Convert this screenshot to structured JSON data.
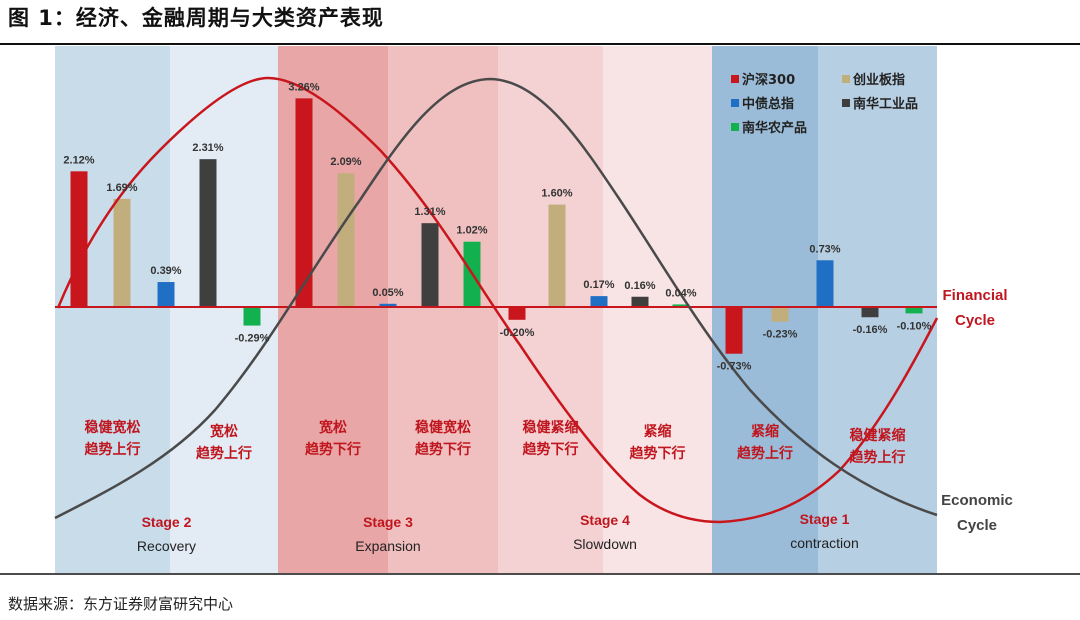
{
  "title": "图 1：经济、金融周期与大类资产表现",
  "source": "数据来源：东方证券财富研究中心",
  "colors": {
    "沪深300": "#c9161d",
    "创业板指": "#c2ae7c",
    "中债总指": "#1f6fc4",
    "南华工业品": "#3f3f3f",
    "南华农产品": "#12b04e",
    "financial_curve": "#c9161d",
    "economic_curve": "#4a4a4a"
  },
  "chart_data": {
    "type": "bar",
    "title": "",
    "xlabel": "",
    "ylabel": "",
    "unit": "%",
    "ylim": [
      -1.0,
      3.4
    ],
    "legend": {
      "placement": "top-right",
      "entries": [
        "沪深300",
        "创业板指",
        "中债总指",
        "南华工业品",
        "南华农产品"
      ]
    },
    "stages": [
      {
        "name": "Stage 2",
        "sub": "Recovery",
        "bg": [
          "#c9dcea",
          "#e3ecf5"
        ],
        "phases": [
          {
            "label": [
              "稳健宽松",
              "趋势上行"
            ],
            "bars": [
              {
                "series": "沪深300",
                "value": 2.12,
                "label": "2.12%"
              },
              {
                "series": "创业板指",
                "value": 1.69,
                "label": "1.69%"
              },
              {
                "series": "中债总指",
                "value": 0.39,
                "label": "0.39%"
              }
            ]
          },
          {
            "label": [
              "宽松",
              "趋势上行"
            ],
            "bars": [
              {
                "series": "南华工业品",
                "value": 2.31,
                "label": "2.31%"
              },
              {
                "series": "南华农产品",
                "value": -0.29,
                "label": "-0.29%"
              }
            ]
          }
        ]
      },
      {
        "name": "Stage 3",
        "sub": "Expansion",
        "bg": [
          "#e8a6a6",
          "#f0c0c0"
        ],
        "phases": [
          {
            "label": [
              "宽松",
              "趋势下行"
            ],
            "bars": [
              {
                "series": "沪深300",
                "value": 3.26,
                "label": "3.26%"
              },
              {
                "series": "创业板指",
                "value": 2.09,
                "label": "2.09%"
              },
              {
                "series": "中债总指",
                "value": 0.05,
                "label": "0.05%"
              }
            ]
          },
          {
            "label": [
              "稳健宽松",
              "趋势下行"
            ],
            "bars": [
              {
                "series": "南华工业品",
                "value": 1.31,
                "label": "1.31%"
              },
              {
                "series": "南华农产品",
                "value": 1.02,
                "label": "1.02%"
              }
            ]
          }
        ]
      },
      {
        "name": "Stage 4",
        "sub": "Slowdown",
        "bg": [
          "#f4d2d4",
          "#f9e4e5"
        ],
        "phases": [
          {
            "label": [
              "稳健紧缩",
              "趋势下行"
            ],
            "bars": [
              {
                "series": "沪深300",
                "value": -0.2,
                "label": "-0.20%"
              },
              {
                "series": "创业板指",
                "value": 1.6,
                "label": "1.60%"
              }
            ]
          },
          {
            "label": [
              "紧缩",
              "趋势下行"
            ],
            "bars": [
              {
                "series": "中债总指",
                "value": 0.17,
                "label": "0.17%"
              },
              {
                "series": "南华工业品",
                "value": 0.16,
                "label": "0.16%"
              },
              {
                "series": "南华农产品",
                "value": 0.04,
                "label": "0.04%"
              }
            ]
          }
        ]
      },
      {
        "name": "Stage 1",
        "sub": "contraction",
        "bg": [
          "#9bbcd8",
          "#b7cfe3"
        ],
        "phases": [
          {
            "label": [
              "紧缩",
              "趋势上行"
            ],
            "bars": [
              {
                "series": "沪深300",
                "value": -0.73,
                "label": "-0.73%"
              },
              {
                "series": "创业板指",
                "value": -0.23,
                "label": "-0.23%"
              },
              {
                "series": "中债总指",
                "value": 0.73,
                "label": "0.73%"
              }
            ]
          },
          {
            "label": [
              "稳健紧缩",
              "趋势上行"
            ],
            "bars": [
              {
                "series": "南华工业品",
                "value": -0.16,
                "label": "-0.16%"
              },
              {
                "series": "南华农产品",
                "value": -0.1,
                "label": "-0.10%"
              }
            ]
          }
        ]
      }
    ],
    "curves": [
      {
        "name": "Financial Cycle",
        "label": [
          "Financial",
          "Cycle"
        ]
      },
      {
        "name": "Economic Cycle",
        "label": [
          "Economic",
          "Cycle"
        ]
      }
    ]
  }
}
